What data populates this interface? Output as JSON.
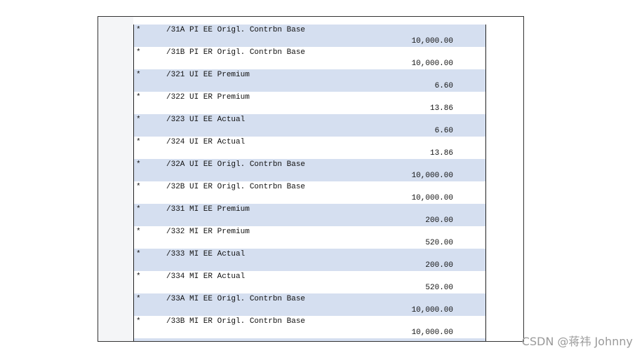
{
  "rows": [
    {
      "marker": "*",
      "label": "/31A PI EE Origl. Contrbn Base",
      "amount": "10,000.00"
    },
    {
      "marker": "*",
      "label": "/31B PI ER Origl. Contrbn Base",
      "amount": "10,000.00"
    },
    {
      "marker": "*",
      "label": "/321 UI EE Premium",
      "amount": "6.60"
    },
    {
      "marker": "*",
      "label": "/322 UI ER Premium",
      "amount": "13.86"
    },
    {
      "marker": "*",
      "label": "/323 UI EE Actual",
      "amount": "6.60"
    },
    {
      "marker": "*",
      "label": "/324 UI ER Actual",
      "amount": "13.86"
    },
    {
      "marker": "*",
      "label": "/32A UI EE Origl. Contrbn Base",
      "amount": "10,000.00"
    },
    {
      "marker": "*",
      "label": "/32B UI ER Origl. Contrbn Base",
      "amount": "10,000.00"
    },
    {
      "marker": "*",
      "label": "/331 MI EE Premium",
      "amount": "200.00"
    },
    {
      "marker": "*",
      "label": "/332 MI ER Premium",
      "amount": "520.00"
    },
    {
      "marker": "*",
      "label": "/333 MI EE Actual",
      "amount": "200.00"
    },
    {
      "marker": "*",
      "label": "/334 MI ER Actual",
      "amount": "520.00"
    },
    {
      "marker": "*",
      "label": "/33A MI EE Origl. Contrbn Base",
      "amount": "10,000.00"
    },
    {
      "marker": "*",
      "label": "/33B MI ER Origl. Contrbn Base",
      "amount": "10,000.00"
    }
  ],
  "watermark": "CSDN @蒋祎 Johnny"
}
